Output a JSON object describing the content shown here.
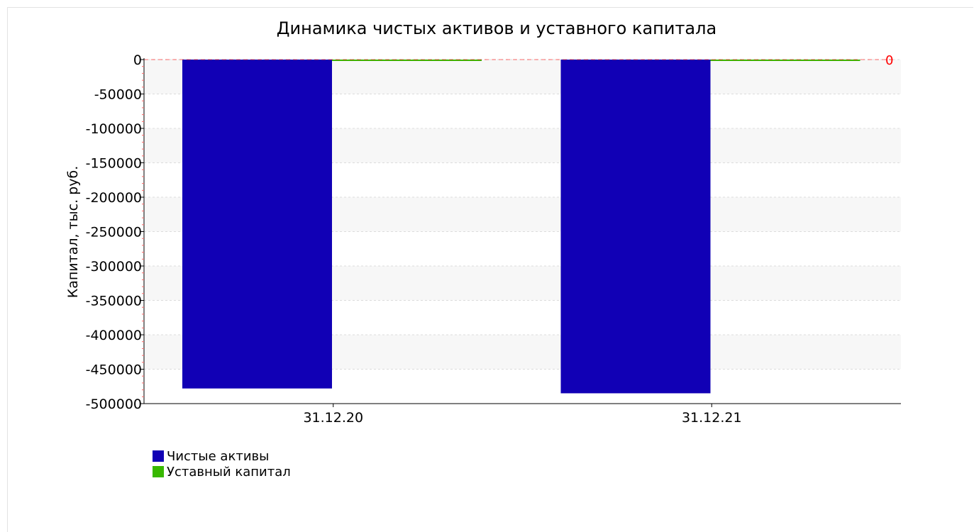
{
  "chart_data": {
    "type": "bar",
    "title": "Динамика чистых активов и уставного капитала",
    "xlabel": "",
    "ylabel": "Капитал, тыс. руб.",
    "ylim": [
      -500000,
      0
    ],
    "yticks": [
      0,
      -50000,
      -100000,
      -150000,
      -200000,
      -250000,
      -300000,
      -350000,
      -400000,
      -450000,
      -500000
    ],
    "ytick_labels": [
      "0",
      "-50000",
      "-100000",
      "-150000",
      "-200000",
      "-250000",
      "-300000",
      "-350000",
      "-400000",
      "-450000",
      "-500000"
    ],
    "categories": [
      "31.12.20",
      "31.12.21"
    ],
    "series": [
      {
        "name": "Чистые активы",
        "values": [
          -478000,
          -485000
        ],
        "color": "#1100b5"
      },
      {
        "name": "Уставный капитал",
        "values": [
          10,
          10
        ],
        "color": "#38b800"
      }
    ],
    "reference_line": {
      "value": 0,
      "label": "0",
      "color": "#ff0000"
    },
    "grid": true,
    "legend_position": "bottom-left"
  }
}
